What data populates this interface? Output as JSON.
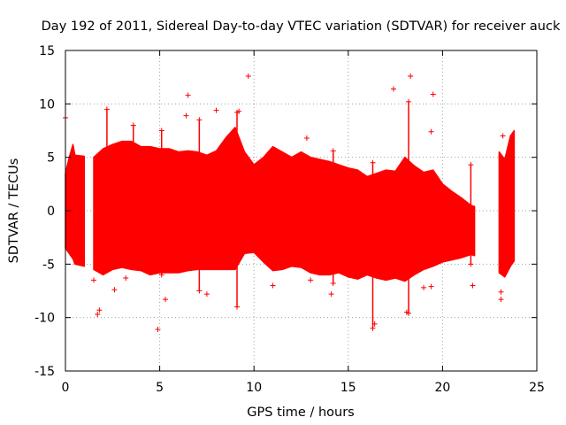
{
  "chart_data": {
    "type": "scatter",
    "title": "Day 192 of 2011, Sidereal Day-to-day VTEC variation (SDTVAR) for receiver auck",
    "xlabel": "GPS time / hours",
    "ylabel": "SDTVAR / TECUs",
    "xlim": [
      0,
      25
    ],
    "ylim": [
      -15,
      15
    ],
    "xticks": [
      0,
      5,
      10,
      15,
      20,
      25
    ],
    "yticks": [
      -15,
      -10,
      -5,
      0,
      5,
      10,
      15
    ],
    "xtick_labels": [
      "0",
      "5",
      "10",
      "15",
      "20",
      "25"
    ],
    "ytick_labels": [
      "-15",
      "-10",
      "-5",
      "0",
      "5",
      "10",
      "15"
    ],
    "grid": true,
    "marker": "+",
    "color": "#ff0000",
    "envelope": {
      "description": "dense band of SDTVAR values; upper and lower bounds by GPS hour",
      "segments": [
        {
          "x": [
            0.0,
            0.2,
            0.4,
            0.5,
            1.0
          ],
          "upper": [
            3.5,
            5.0,
            6.2,
            5.2,
            5.1
          ],
          "lower": [
            -3.5,
            -4.0,
            -4.5,
            -5.0,
            -5.2
          ]
        },
        {
          "x": [
            1.5,
            2.0,
            2.5,
            3.0,
            3.5,
            4.0,
            4.5,
            5.0,
            5.5,
            6.0,
            6.5,
            7.0,
            7.5,
            8.0,
            8.5,
            9.0,
            9.5,
            10.0,
            10.5,
            11.0,
            11.5,
            12.0,
            12.5,
            13.0,
            13.5,
            14.0,
            14.5,
            15.0,
            15.5,
            16.0,
            16.5,
            17.0,
            17.5,
            18.0,
            18.5,
            19.0,
            19.5,
            20.0,
            20.5,
            21.0,
            21.5,
            21.7
          ],
          "upper": [
            5.0,
            5.8,
            6.2,
            6.5,
            6.5,
            6.0,
            6.0,
            5.8,
            5.8,
            5.5,
            5.6,
            5.5,
            5.2,
            5.6,
            6.8,
            7.8,
            5.5,
            4.3,
            5.0,
            6.0,
            5.5,
            5.0,
            5.5,
            5.0,
            4.8,
            4.6,
            4.3,
            4.0,
            3.8,
            3.2,
            3.5,
            3.8,
            3.7,
            5.0,
            4.2,
            3.6,
            3.8,
            2.5,
            1.8,
            1.2,
            0.5,
            0.4
          ],
          "lower": [
            -5.5,
            -6.0,
            -5.5,
            -5.3,
            -5.5,
            -5.6,
            -6.0,
            -5.8,
            -5.8,
            -5.8,
            -5.6,
            -5.5,
            -5.5,
            -5.5,
            -5.5,
            -5.5,
            -4.0,
            -3.9,
            -4.8,
            -5.6,
            -5.5,
            -5.2,
            -5.3,
            -5.8,
            -6.0,
            -6.0,
            -5.8,
            -6.2,
            -6.4,
            -6.0,
            -6.3,
            -6.5,
            -6.3,
            -6.6,
            -6.0,
            -5.5,
            -5.2,
            -4.8,
            -4.6,
            -4.4,
            -4.1,
            -4.2
          ]
        },
        {
          "x": [
            23.0,
            23.3,
            23.6,
            23.8
          ],
          "upper": [
            5.5,
            4.8,
            7.0,
            7.5
          ],
          "lower": [
            -5.8,
            -6.2,
            -5.2,
            -4.7
          ]
        }
      ]
    },
    "spikes": [
      {
        "x": 2.2,
        "low": -4.0,
        "high": 9.5
      },
      {
        "x": 3.6,
        "low": -5.0,
        "high": 8.0
      },
      {
        "x": 5.1,
        "low": -6.0,
        "high": 7.5
      },
      {
        "x": 7.1,
        "low": -7.5,
        "high": 8.5
      },
      {
        "x": 9.1,
        "low": -9.0,
        "high": 9.2
      },
      {
        "x": 14.2,
        "low": -6.8,
        "high": 5.6
      },
      {
        "x": 16.3,
        "low": -11.0,
        "high": 4.5
      },
      {
        "x": 18.2,
        "low": -9.6,
        "high": 10.2
      },
      {
        "x": 21.5,
        "low": -5.0,
        "high": 4.3
      }
    ],
    "outliers": [
      {
        "x": 0.0,
        "y": 8.7
      },
      {
        "x": 1.7,
        "y": -9.7
      },
      {
        "x": 1.8,
        "y": -9.3
      },
      {
        "x": 4.9,
        "y": -11.1
      },
      {
        "x": 6.5,
        "y": 10.8
      },
      {
        "x": 6.4,
        "y": 8.9
      },
      {
        "x": 7.5,
        "y": -7.8
      },
      {
        "x": 8.0,
        "y": 9.4
      },
      {
        "x": 9.7,
        "y": 12.6
      },
      {
        "x": 9.2,
        "y": 9.3
      },
      {
        "x": 12.8,
        "y": 6.8
      },
      {
        "x": 14.1,
        "y": -7.8
      },
      {
        "x": 17.4,
        "y": 11.4
      },
      {
        "x": 18.3,
        "y": 12.6
      },
      {
        "x": 19.5,
        "y": 10.9
      },
      {
        "x": 19.4,
        "y": 7.4
      },
      {
        "x": 19.0,
        "y": -7.2
      },
      {
        "x": 19.4,
        "y": -7.1
      },
      {
        "x": 21.6,
        "y": -7.0
      },
      {
        "x": 23.1,
        "y": -7.6
      },
      {
        "x": 23.1,
        "y": -8.3
      },
      {
        "x": 23.2,
        "y": 7.0
      },
      {
        "x": 1.5,
        "y": -6.5
      },
      {
        "x": 2.6,
        "y": -7.4
      },
      {
        "x": 3.2,
        "y": -6.3
      },
      {
        "x": 5.3,
        "y": -8.3
      },
      {
        "x": 16.4,
        "y": -10.6
      },
      {
        "x": 18.1,
        "y": -9.5
      },
      {
        "x": 11.0,
        "y": -7.0
      },
      {
        "x": 13.0,
        "y": -6.5
      }
    ]
  }
}
